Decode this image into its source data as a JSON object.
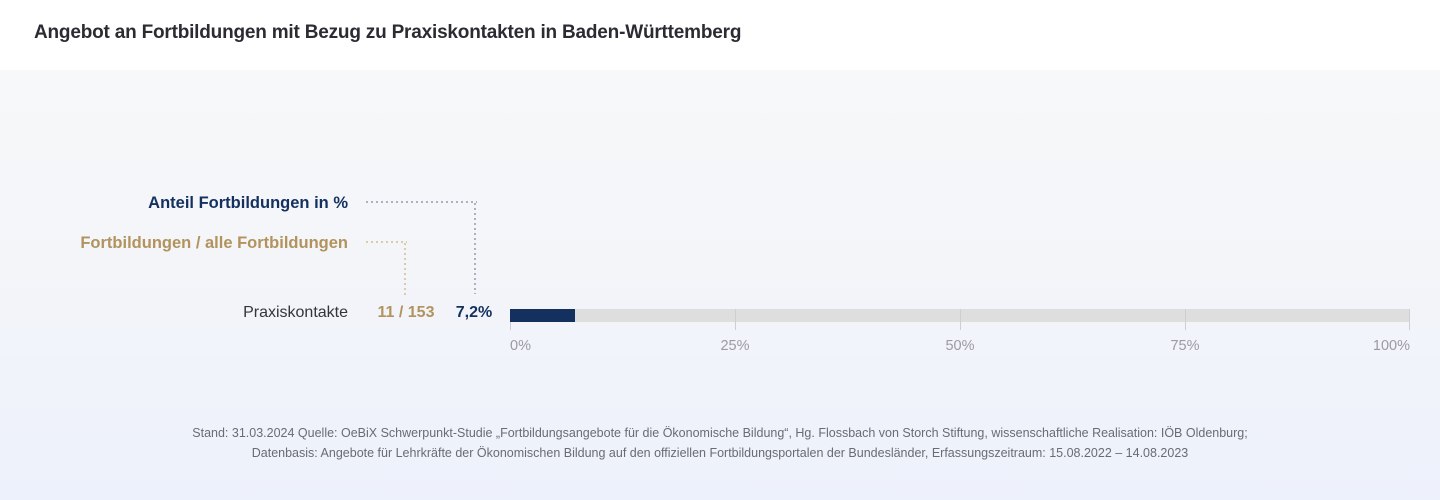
{
  "page_title": "Angebot an Fortbildungen mit Bezug zu Praxiskontakten in Baden-Württemberg",
  "legend": {
    "percent_label": "Anteil Fortbildungen  in %",
    "ratio_label": "Fortbildungen / alle Fortbildungen"
  },
  "chart_data": {
    "type": "bar",
    "orientation": "horizontal",
    "title": "Angebot an Fortbildungen mit Bezug zu Praxiskontakten in Baden-Württemberg",
    "categories": [
      "Praxiskontakte"
    ],
    "series": [
      {
        "name": "Anteil Fortbildungen in %",
        "unit": "%",
        "values": [
          7.2
        ],
        "display_values": [
          "7,2%"
        ]
      },
      {
        "name": "Fortbildungen / alle Fortbildungen",
        "values": [
          [
            11,
            153
          ]
        ],
        "display_values": [
          "11 / 153"
        ]
      }
    ],
    "xlabel": "",
    "ylabel": "",
    "xlim": [
      0,
      100
    ],
    "x_ticks": [
      "0%",
      "25%",
      "50%",
      "75%",
      "100%"
    ],
    "grid": false,
    "legend_position": "top-left"
  },
  "row": {
    "label": "Praxiskontakte",
    "ratio_text": "11 / 153",
    "percent_text": "7,2%",
    "percent_value": 7.2
  },
  "footer": {
    "line1": "Stand: 31.03.2024 Quelle: OeBiX Schwerpunkt-Studie „Fortbildungsangebote für die Ökonomische Bildung“, Hg. Flossbach von Storch Stiftung, wissenschaftliche Realisation: IÖB Oldenburg;",
    "line2": "Datenbasis: Angebote für Lehrkräfte der Ökonomischen Bildung auf den offiziellen Fortbildungsportalen der Bundesländer, Erfassungszeitraum: 15.08.2022 – 14.08.2023"
  },
  "colors": {
    "navy": "#14305f",
    "gold": "#b2935d",
    "bar_track": "#dedede",
    "tick_line": "#cfcfcf",
    "tick_label": "#9b9ba1",
    "footer_text": "#6b6b72",
    "title_text": "#2b2b33",
    "row_label_text": "#33353a",
    "connector_navy": "#a9b2c4",
    "connector_gold": "#d9cbab",
    "header_bg": "#ffffff",
    "panel_bg_top": "#f7f8f9",
    "panel_bg_bottom": "#edf1fb"
  }
}
